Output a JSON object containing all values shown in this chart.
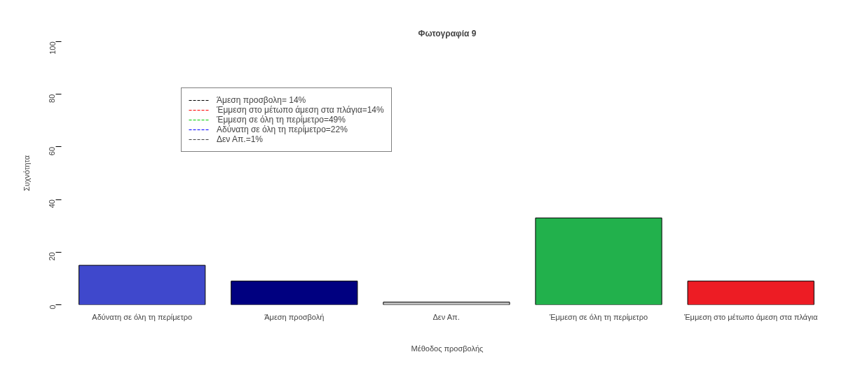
{
  "chart_data": {
    "type": "bar",
    "title": "Φωτογραφία 9",
    "xlabel": "Μέθοδος προσβολής",
    "ylabel": "Συχνότητα",
    "categories": [
      "Αδύνατη σε όλη τη περίμετρο",
      "Άμεση προσβολή",
      "Δεν Απ.",
      "Έμμεση σε όλη τη περίμετρο",
      "Έμμεση στο μέτωπο άμεση στα πλάγια"
    ],
    "values": [
      15,
      9,
      1,
      33,
      9
    ],
    "colors": [
      "#3f48cc",
      "#000080",
      "#c0c0c0",
      "#22b14c",
      "#ed1c24"
    ],
    "ylim": [
      0,
      100
    ],
    "yticks": [
      0,
      20,
      40,
      60,
      80,
      100
    ],
    "grid": false,
    "annotations": [
      "Άμεση προσβολη= 14%",
      "Έμμεση στο μέτωπο άμεση στα πλάγια=14%",
      "Έμμεση σε όλη τη περίμετρο=49%",
      "Αδύνατη σε όλη τη περίμετρο=22%",
      "Δεν Απ.=1%"
    ]
  }
}
